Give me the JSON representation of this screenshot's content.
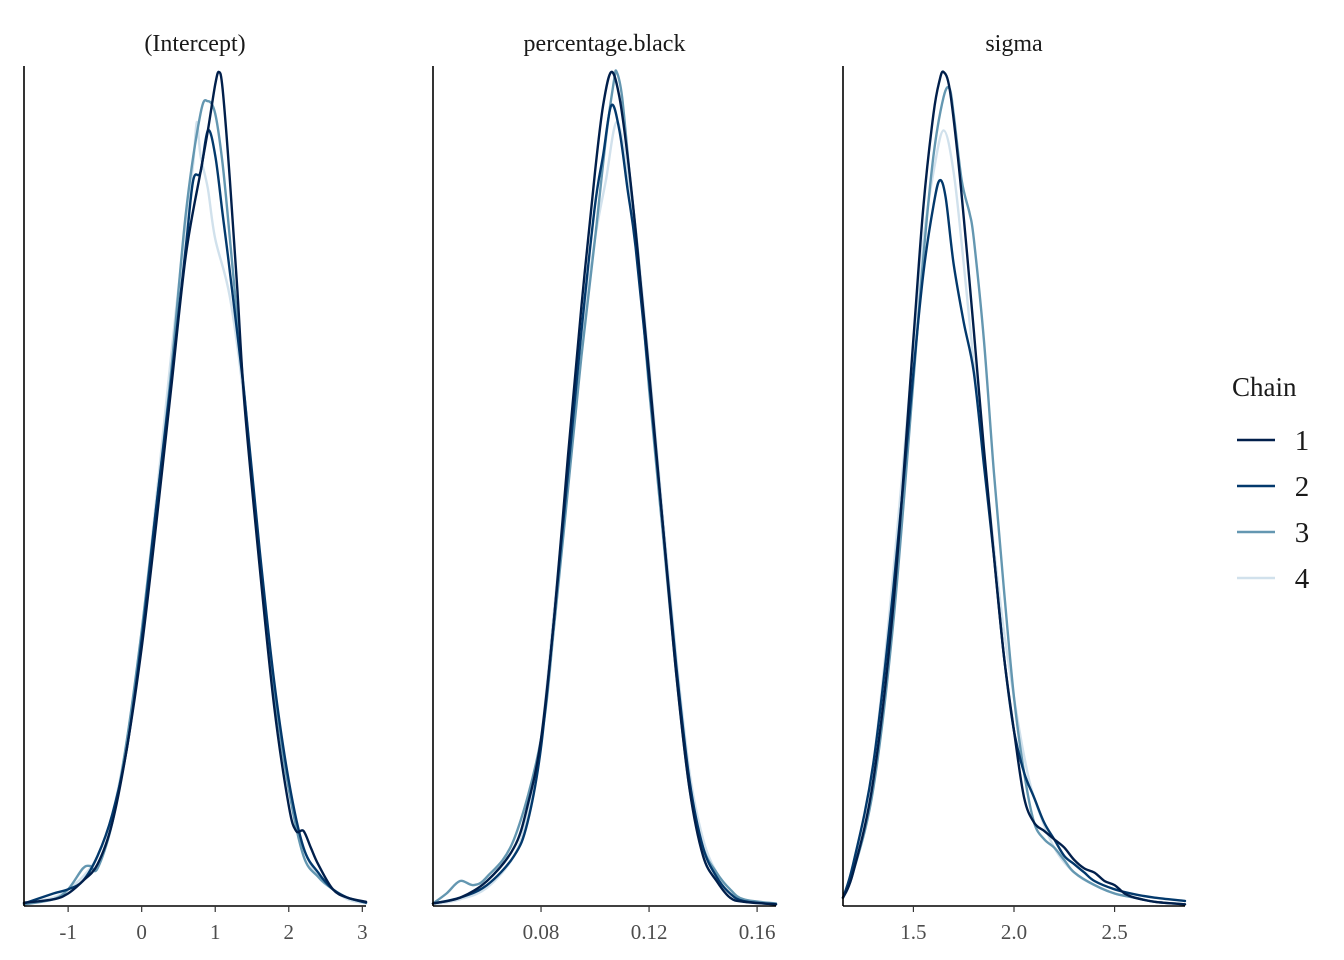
{
  "chart_data": {
    "type": "line",
    "kind": "posterior density by chain",
    "colors": [
      "#011f4b",
      "#03396c",
      "#6497b1",
      "#d1e1ec"
    ],
    "legend": {
      "title": "Chain",
      "position": "right",
      "entries": [
        "1",
        "2",
        "3",
        "4"
      ]
    },
    "grid": false,
    "panels": [
      {
        "title": "(Intercept)",
        "xlim": [
          -1.6,
          3.05
        ],
        "ticks": [
          -1,
          0,
          1,
          2,
          3
        ],
        "tick_labels": [
          "-1",
          "0",
          "1",
          "2",
          "3"
        ],
        "series": [
          {
            "name": "1",
            "x": [
              -1.6,
              -1.2,
              -1.0,
              -0.8,
              -0.6,
              -0.4,
              -0.2,
              0,
              0.2,
              0.4,
              0.6,
              0.8,
              0.9,
              1.0,
              1.05,
              1.1,
              1.2,
              1.3,
              1.4,
              1.6,
              1.8,
              2.0,
              2.1,
              2.2,
              2.3,
              2.4,
              2.6,
              2.8,
              3.05
            ],
            "y": [
              0.004,
              0.008,
              0.015,
              0.03,
              0.05,
              0.1,
              0.19,
              0.31,
              0.46,
              0.62,
              0.78,
              0.88,
              0.93,
              0.985,
              1.0,
              0.98,
              0.87,
              0.74,
              0.6,
              0.41,
              0.24,
              0.12,
              0.09,
              0.09,
              0.07,
              0.05,
              0.02,
              0.01,
              0.005
            ]
          },
          {
            "name": "2",
            "x": [
              -1.6,
              -1.2,
              -1.0,
              -0.8,
              -0.6,
              -0.4,
              -0.2,
              0,
              0.2,
              0.4,
              0.6,
              0.7,
              0.8,
              0.9,
              1.0,
              1.1,
              1.2,
              1.4,
              1.6,
              1.8,
              2.0,
              2.2,
              2.4,
              2.6,
              2.8,
              3.05
            ],
            "y": [
              0.003,
              0.015,
              0.02,
              0.03,
              0.06,
              0.11,
              0.19,
              0.32,
              0.48,
              0.63,
              0.79,
              0.87,
              0.88,
              0.93,
              0.9,
              0.83,
              0.76,
              0.61,
              0.43,
              0.27,
              0.15,
              0.07,
              0.04,
              0.02,
              0.01,
              0.004
            ]
          },
          {
            "name": "3",
            "x": [
              -1.6,
              -1.2,
              -1.0,
              -0.8,
              -0.7,
              -0.6,
              -0.4,
              -0.2,
              0,
              0.2,
              0.4,
              0.6,
              0.8,
              0.9,
              1.0,
              1.1,
              1.2,
              1.4,
              1.6,
              1.8,
              2.0,
              2.2,
              2.4,
              2.6,
              2.8,
              3.05
            ],
            "y": [
              0.002,
              0.008,
              0.02,
              0.045,
              0.048,
              0.045,
              0.1,
              0.2,
              0.33,
              0.48,
              0.64,
              0.83,
              0.95,
              0.965,
              0.95,
              0.89,
              0.8,
              0.61,
              0.42,
              0.26,
              0.14,
              0.06,
              0.035,
              0.02,
              0.01,
              0.004
            ]
          },
          {
            "name": "4",
            "x": [
              -1.6,
              -1.2,
              -1.0,
              -0.8,
              -0.6,
              -0.4,
              -0.2,
              0,
              0.2,
              0.4,
              0.6,
              0.7,
              0.75,
              0.8,
              0.9,
              1.0,
              1.2,
              1.4,
              1.6,
              1.8,
              2.0,
              2.2,
              2.4,
              2.6,
              2.8,
              3.05
            ],
            "y": [
              0.003,
              0.01,
              0.02,
              0.035,
              0.06,
              0.11,
              0.2,
              0.33,
              0.49,
              0.66,
              0.82,
              0.89,
              0.94,
              0.9,
              0.86,
              0.8,
              0.73,
              0.6,
              0.42,
              0.26,
              0.14,
              0.07,
              0.035,
              0.02,
              0.008,
              0.003
            ]
          }
        ]
      },
      {
        "title": "percentage.black",
        "xlim": [
          0.04,
          0.167
        ],
        "ticks": [
          0.08,
          0.12,
          0.16
        ],
        "tick_labels": [
          "0.08",
          "0.12",
          "0.16"
        ],
        "series": [
          {
            "name": "1",
            "x": [
              0.04,
              0.05,
              0.06,
              0.07,
              0.075,
              0.08,
              0.085,
              0.09,
              0.095,
              0.1,
              0.103,
              0.106,
              0.109,
              0.112,
              0.115,
              0.12,
              0.125,
              0.13,
              0.135,
              0.14,
              0.145,
              0.15,
              0.155,
              0.167
            ],
            "y": [
              0.003,
              0.01,
              0.03,
              0.07,
              0.12,
              0.2,
              0.35,
              0.54,
              0.72,
              0.88,
              0.96,
              1.0,
              0.97,
              0.9,
              0.81,
              0.64,
              0.46,
              0.28,
              0.14,
              0.06,
              0.03,
              0.01,
              0.005,
              0.002
            ]
          },
          {
            "name": "2",
            "x": [
              0.04,
              0.05,
              0.06,
              0.07,
              0.075,
              0.08,
              0.085,
              0.09,
              0.095,
              0.1,
              0.103,
              0.106,
              0.109,
              0.112,
              0.115,
              0.12,
              0.125,
              0.13,
              0.135,
              0.14,
              0.145,
              0.15,
              0.155,
              0.167
            ],
            "y": [
              0.003,
              0.01,
              0.025,
              0.06,
              0.1,
              0.19,
              0.35,
              0.52,
              0.69,
              0.84,
              0.9,
              0.96,
              0.93,
              0.86,
              0.79,
              0.63,
              0.46,
              0.29,
              0.15,
              0.07,
              0.035,
              0.015,
              0.006,
              0.002
            ]
          },
          {
            "name": "3",
            "x": [
              0.04,
              0.045,
              0.05,
              0.055,
              0.06,
              0.07,
              0.08,
              0.085,
              0.09,
              0.095,
              0.1,
              0.104,
              0.107,
              0.108,
              0.11,
              0.113,
              0.116,
              0.12,
              0.125,
              0.13,
              0.135,
              0.14,
              0.145,
              0.15,
              0.155,
              0.167
            ],
            "y": [
              0.003,
              0.015,
              0.03,
              0.025,
              0.035,
              0.08,
              0.2,
              0.34,
              0.5,
              0.66,
              0.8,
              0.92,
              0.99,
              1.0,
              0.97,
              0.87,
              0.78,
              0.62,
              0.45,
              0.28,
              0.14,
              0.07,
              0.04,
              0.02,
              0.008,
              0.003
            ]
          },
          {
            "name": "4",
            "x": [
              0.04,
              0.05,
              0.06,
              0.07,
              0.075,
              0.08,
              0.085,
              0.09,
              0.095,
              0.1,
              0.104,
              0.108,
              0.112,
              0.116,
              0.12,
              0.125,
              0.13,
              0.135,
              0.14,
              0.145,
              0.15,
              0.155,
              0.167
            ],
            "y": [
              0.002,
              0.008,
              0.022,
              0.06,
              0.11,
              0.2,
              0.36,
              0.52,
              0.68,
              0.8,
              0.87,
              0.94,
              0.88,
              0.78,
              0.65,
              0.47,
              0.3,
              0.16,
              0.08,
              0.04,
              0.02,
              0.008,
              0.002
            ]
          }
        ]
      },
      {
        "title": "sigma",
        "xlim": [
          1.15,
          2.85
        ],
        "ticks": [
          1.5,
          2.0,
          2.5
        ],
        "tick_labels": [
          "1.5",
          "2.0",
          "2.5"
        ],
        "series": [
          {
            "name": "1",
            "x": [
              1.15,
              1.2,
              1.3,
              1.4,
              1.5,
              1.55,
              1.6,
              1.63,
              1.65,
              1.68,
              1.72,
              1.76,
              1.8,
              1.85,
              1.9,
              1.95,
              2.0,
              2.05,
              2.1,
              2.15,
              2.2,
              2.25,
              2.3,
              2.35,
              2.4,
              2.45,
              2.5,
              2.55,
              2.6,
              2.7,
              2.85
            ],
            "y": [
              0.01,
              0.04,
              0.15,
              0.36,
              0.68,
              0.84,
              0.95,
              0.99,
              1.0,
              0.98,
              0.9,
              0.8,
              0.69,
              0.55,
              0.42,
              0.3,
              0.21,
              0.13,
              0.1,
              0.09,
              0.08,
              0.07,
              0.055,
              0.045,
              0.04,
              0.03,
              0.025,
              0.015,
              0.01,
              0.005,
              0.002
            ]
          },
          {
            "name": "2",
            "x": [
              1.15,
              1.2,
              1.3,
              1.4,
              1.5,
              1.55,
              1.6,
              1.63,
              1.66,
              1.7,
              1.75,
              1.8,
              1.85,
              1.9,
              1.95,
              2.0,
              2.05,
              2.1,
              2.15,
              2.2,
              2.25,
              2.3,
              2.35,
              2.4,
              2.5,
              2.6,
              2.7,
              2.85
            ],
            "y": [
              0.01,
              0.05,
              0.17,
              0.38,
              0.64,
              0.76,
              0.84,
              0.87,
              0.85,
              0.77,
              0.7,
              0.64,
              0.53,
              0.42,
              0.3,
              0.21,
              0.16,
              0.13,
              0.1,
              0.08,
              0.06,
              0.05,
              0.04,
              0.03,
              0.02,
              0.014,
              0.01,
              0.006
            ]
          },
          {
            "name": "3",
            "x": [
              1.15,
              1.2,
              1.3,
              1.4,
              1.5,
              1.55,
              1.6,
              1.65,
              1.68,
              1.7,
              1.74,
              1.78,
              1.8,
              1.85,
              1.9,
              1.95,
              2.0,
              2.05,
              2.1,
              2.15,
              2.2,
              2.25,
              2.3,
              2.4,
              2.5,
              2.6,
              2.7,
              2.85
            ],
            "y": [
              0.01,
              0.04,
              0.14,
              0.34,
              0.63,
              0.78,
              0.9,
              0.97,
              0.98,
              0.95,
              0.87,
              0.83,
              0.8,
              0.68,
              0.52,
              0.38,
              0.25,
              0.16,
              0.1,
              0.08,
              0.07,
              0.055,
              0.04,
              0.025,
              0.015,
              0.01,
              0.005,
              0.002
            ]
          },
          {
            "name": "4",
            "x": [
              1.15,
              1.2,
              1.3,
              1.4,
              1.5,
              1.55,
              1.6,
              1.65,
              1.7,
              1.75,
              1.8,
              1.85,
              1.9,
              1.95,
              2.0,
              2.05,
              2.1,
              2.2,
              2.3,
              2.4,
              2.5,
              2.6,
              2.7,
              2.85
            ],
            "y": [
              0.01,
              0.05,
              0.17,
              0.4,
              0.67,
              0.8,
              0.88,
              0.93,
              0.88,
              0.77,
              0.65,
              0.54,
              0.43,
              0.33,
              0.25,
              0.18,
              0.13,
              0.07,
              0.04,
              0.025,
              0.015,
              0.01,
              0.005,
              0.002
            ]
          }
        ]
      }
    ]
  }
}
